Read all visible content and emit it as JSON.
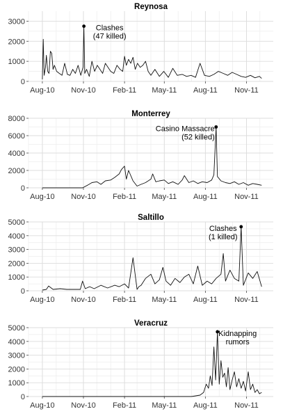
{
  "chart_data": [
    {
      "type": "line",
      "title": "Reynosa",
      "xlabel": "",
      "ylabel": "",
      "x_ticks": [
        "Aug-10",
        "Nov-10",
        "Feb-11",
        "May-11",
        "Aug-11",
        "Nov-11"
      ],
      "ylim": [
        0,
        3500
      ],
      "y_ticks": [
        0,
        1000,
        2000,
        3000
      ],
      "grid": true,
      "x": [
        "2010-08-01",
        "2010-08-03",
        "2010-08-05",
        "2010-08-08",
        "2010-08-10",
        "2010-08-13",
        "2010-08-16",
        "2010-08-19",
        "2010-08-22",
        "2010-08-25",
        "2010-08-28",
        "2010-09-02",
        "2010-09-08",
        "2010-09-14",
        "2010-09-20",
        "2010-09-26",
        "2010-10-02",
        "2010-10-08",
        "2010-10-14",
        "2010-10-20",
        "2010-10-26",
        "2010-10-31",
        "2010-11-02",
        "2010-11-04",
        "2010-11-08",
        "2010-11-14",
        "2010-11-20",
        "2010-11-26",
        "2010-12-02",
        "2010-12-08",
        "2010-12-14",
        "2010-12-20",
        "2010-12-26",
        "2011-01-01",
        "2011-01-08",
        "2011-01-15",
        "2011-01-22",
        "2011-01-28",
        "2011-02-01",
        "2011-02-05",
        "2011-02-10",
        "2011-02-15",
        "2011-02-20",
        "2011-02-25",
        "2011-03-02",
        "2011-03-08",
        "2011-03-14",
        "2011-03-20",
        "2011-03-26",
        "2011-04-01",
        "2011-04-10",
        "2011-04-20",
        "2011-04-30",
        "2011-05-10",
        "2011-05-20",
        "2011-05-30",
        "2011-06-10",
        "2011-06-20",
        "2011-06-30",
        "2011-07-10",
        "2011-07-20",
        "2011-07-30",
        "2011-08-10",
        "2011-08-20",
        "2011-08-30",
        "2011-09-10",
        "2011-09-20",
        "2011-09-30",
        "2011-10-10",
        "2011-10-20",
        "2011-10-30",
        "2011-11-10",
        "2011-11-20",
        "2011-11-30",
        "2011-12-05"
      ],
      "series": [
        {
          "values": [
            100,
            2100,
            300,
            700,
            1300,
            500,
            400,
            1500,
            1400,
            600,
            800,
            500,
            400,
            300,
            900,
            350,
            300,
            600,
            400,
            800,
            300,
            700,
            2750,
            400,
            600,
            250,
            1000,
            500,
            800,
            600,
            400,
            900,
            700,
            500,
            400,
            800,
            600,
            500,
            1250,
            800,
            1100,
            900,
            1200,
            600,
            900,
            700,
            800,
            1000,
            500,
            300,
            600,
            250,
            500,
            200,
            650,
            300,
            350,
            250,
            300,
            200,
            900,
            300,
            250,
            350,
            500,
            400,
            300,
            450,
            350,
            250,
            200,
            300,
            180,
            250,
            150
          ]
        }
      ],
      "annotations": [
        {
          "text": "Clashes\n(47 killed)",
          "x": "2010-11-02",
          "y": 2750
        }
      ]
    },
    {
      "type": "line",
      "title": "Monterrey",
      "xlabel": "",
      "ylabel": "",
      "x_ticks": [
        "Aug-10",
        "Nov-10",
        "Feb-11",
        "May-11",
        "Aug-11",
        "Nov-11"
      ],
      "ylim": [
        0,
        8000
      ],
      "y_ticks": [
        0,
        2000,
        4000,
        6000,
        8000
      ],
      "grid": true,
      "x": [
        "2010-08-01",
        "2010-08-15",
        "2010-09-01",
        "2010-09-15",
        "2010-10-01",
        "2010-10-15",
        "2010-10-30",
        "2010-11-10",
        "2010-11-20",
        "2010-12-01",
        "2010-12-10",
        "2010-12-20",
        "2011-01-01",
        "2011-01-10",
        "2011-01-20",
        "2011-01-25",
        "2011-02-01",
        "2011-02-05",
        "2011-02-10",
        "2011-02-20",
        "2011-03-01",
        "2011-03-10",
        "2011-03-20",
        "2011-04-01",
        "2011-04-05",
        "2011-04-12",
        "2011-04-20",
        "2011-05-01",
        "2011-05-10",
        "2011-05-20",
        "2011-06-01",
        "2011-06-10",
        "2011-06-15",
        "2011-06-25",
        "2011-07-05",
        "2011-07-15",
        "2011-07-25",
        "2011-08-05",
        "2011-08-15",
        "2011-08-20",
        "2011-08-25",
        "2011-08-28",
        "2011-09-05",
        "2011-09-15",
        "2011-09-25",
        "2011-10-05",
        "2011-10-15",
        "2011-10-25",
        "2011-11-05",
        "2011-11-15",
        "2011-11-25",
        "2011-12-05"
      ],
      "series": [
        {
          "values": [
            0,
            0,
            0,
            0,
            0,
            0,
            0,
            300,
            600,
            700,
            400,
            800,
            900,
            1200,
            1600,
            2100,
            2500,
            1000,
            2000,
            800,
            200,
            400,
            600,
            1000,
            1600,
            700,
            800,
            900,
            500,
            700,
            400,
            900,
            1400,
            600,
            800,
            500,
            700,
            600,
            900,
            1500,
            7000,
            1300,
            800,
            600,
            500,
            700,
            400,
            600,
            300,
            500,
            400,
            300
          ]
        }
      ],
      "annotations": [
        {
          "text": "Casino Massacre\n(52 killed)",
          "x": "2011-08-25",
          "y": 7000
        }
      ]
    },
    {
      "type": "line",
      "title": "Saltillo",
      "xlabel": "",
      "ylabel": "",
      "x_ticks": [
        "Aug-10",
        "Nov-10",
        "Feb-11",
        "May-11",
        "Aug-11",
        "Nov-11"
      ],
      "ylim": [
        0,
        5000
      ],
      "y_ticks": [
        0,
        1000,
        2000,
        3000,
        4000,
        5000
      ],
      "grid": true,
      "x": [
        "2010-08-01",
        "2010-08-10",
        "2010-08-15",
        "2010-08-25",
        "2010-09-10",
        "2010-09-25",
        "2010-10-10",
        "2010-10-25",
        "2010-10-30",
        "2010-11-05",
        "2010-11-15",
        "2010-11-25",
        "2010-12-10",
        "2010-12-25",
        "2011-01-10",
        "2011-01-20",
        "2011-02-01",
        "2011-02-10",
        "2011-02-20",
        "2011-03-01",
        "2011-03-05",
        "2011-03-10",
        "2011-03-20",
        "2011-04-01",
        "2011-04-10",
        "2011-04-20",
        "2011-04-28",
        "2011-05-05",
        "2011-05-15",
        "2011-05-25",
        "2011-06-05",
        "2011-06-15",
        "2011-06-25",
        "2011-07-05",
        "2011-07-15",
        "2011-07-25",
        "2011-08-05",
        "2011-08-15",
        "2011-08-25",
        "2011-09-05",
        "2011-09-10",
        "2011-09-15",
        "2011-09-25",
        "2011-10-05",
        "2011-10-15",
        "2011-10-20",
        "2011-10-25",
        "2011-11-05",
        "2011-11-15",
        "2011-11-25",
        "2011-12-05"
      ],
      "series": [
        {
          "values": [
            50,
            100,
            350,
            100,
            150,
            100,
            100,
            100,
            700,
            150,
            300,
            150,
            400,
            200,
            400,
            300,
            500,
            200,
            2400,
            100,
            300,
            400,
            900,
            1200,
            500,
            800,
            1700,
            700,
            400,
            900,
            600,
            1000,
            1200,
            500,
            1800,
            400,
            700,
            500,
            900,
            1200,
            2700,
            700,
            1500,
            900,
            700,
            4650,
            400,
            1300,
            900,
            1400,
            300
          ]
        }
      ],
      "annotations": [
        {
          "text": "Clashes\n(1 killed)",
          "x": "2011-10-20",
          "y": 4650
        }
      ]
    },
    {
      "type": "line",
      "title": "Veracruz",
      "xlabel": "",
      "ylabel": "",
      "x_ticks": [
        "Aug-10",
        "Nov-10",
        "Feb-11",
        "May-11",
        "Aug-11",
        "Nov-11"
      ],
      "ylim": [
        0,
        5000
      ],
      "y_ticks": [
        0,
        1000,
        2000,
        3000,
        4000,
        5000
      ],
      "grid": true,
      "x": [
        "2010-08-01",
        "2010-09-01",
        "2010-10-01",
        "2010-11-01",
        "2010-12-01",
        "2011-01-01",
        "2011-02-01",
        "2011-03-01",
        "2011-04-01",
        "2011-05-01",
        "2011-06-01",
        "2011-07-01",
        "2011-07-20",
        "2011-07-28",
        "2011-08-03",
        "2011-08-08",
        "2011-08-12",
        "2011-08-16",
        "2011-08-20",
        "2011-08-24",
        "2011-08-28",
        "2011-09-01",
        "2011-09-05",
        "2011-09-09",
        "2011-09-13",
        "2011-09-17",
        "2011-09-21",
        "2011-09-25",
        "2011-09-30",
        "2011-10-05",
        "2011-10-10",
        "2011-10-15",
        "2011-10-20",
        "2011-10-25",
        "2011-10-30",
        "2011-11-05",
        "2011-11-10",
        "2011-11-15",
        "2011-11-20",
        "2011-11-25",
        "2011-11-30",
        "2011-12-05"
      ],
      "series": [
        {
          "values": [
            0,
            0,
            0,
            0,
            0,
            0,
            0,
            0,
            0,
            0,
            0,
            0,
            100,
            300,
            900,
            600,
            1500,
            800,
            3600,
            1200,
            4700,
            900,
            2600,
            1400,
            1700,
            700,
            2100,
            500,
            1200,
            1800,
            700,
            1300,
            600,
            1100,
            400,
            1800,
            500,
            900,
            300,
            500,
            200,
            300
          ]
        }
      ],
      "annotations": [
        {
          "text": "Kidnapping\nrumors",
          "x": "2011-08-28",
          "y": 4700
        }
      ]
    }
  ]
}
